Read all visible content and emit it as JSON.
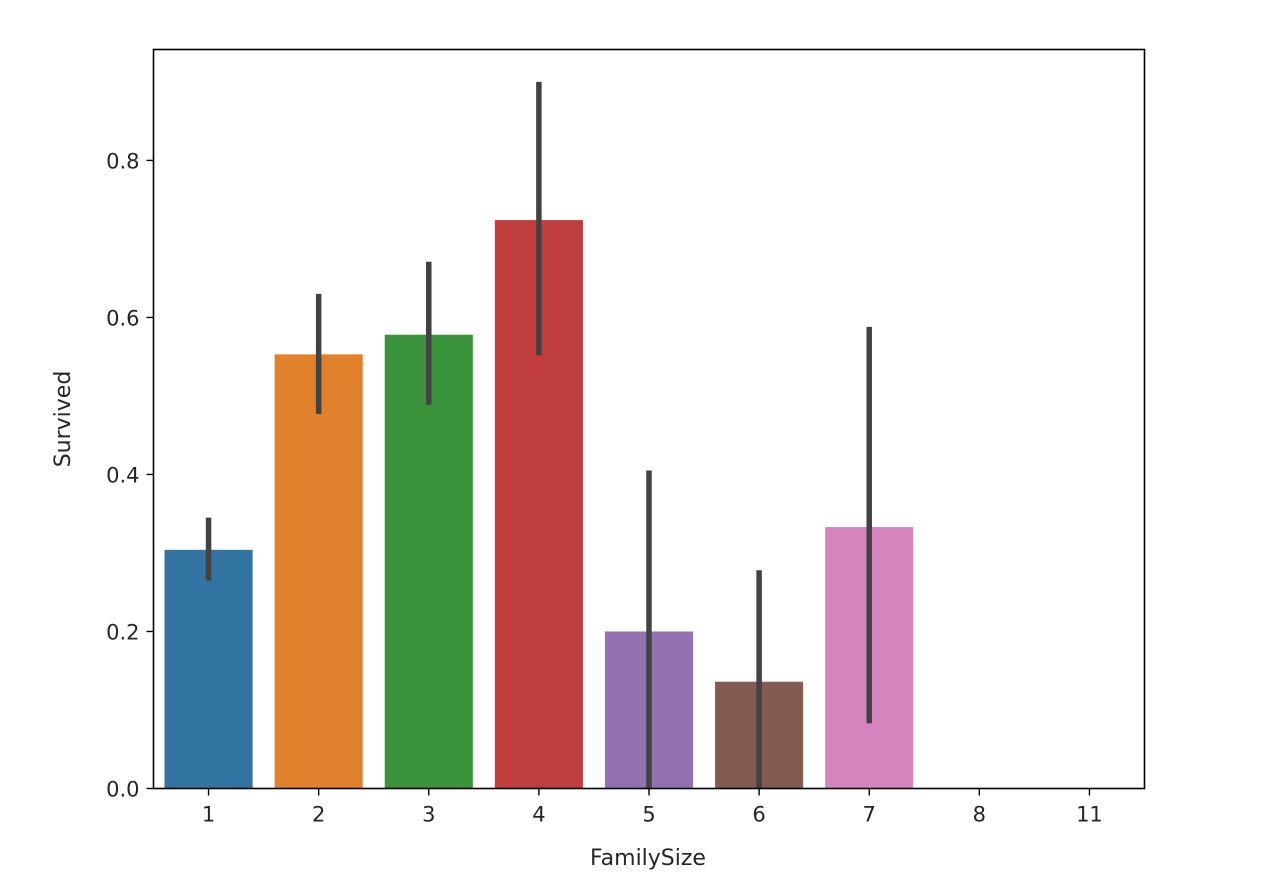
{
  "chart_data": {
    "type": "bar",
    "title": "",
    "xlabel": "FamilySize",
    "ylabel": "Survived",
    "categories": [
      "1",
      "2",
      "3",
      "4",
      "5",
      "6",
      "7",
      "8",
      "11"
    ],
    "values": [
      0.304,
      0.553,
      0.578,
      0.724,
      0.2,
      0.136,
      0.333,
      0.0,
      0.0
    ],
    "ci_low": [
      0.265,
      0.477,
      0.489,
      0.552,
      0.0,
      0.0,
      0.083,
      null,
      null
    ],
    "ci_high": [
      0.345,
      0.63,
      0.671,
      0.9,
      0.405,
      0.278,
      0.588,
      null,
      null
    ],
    "colors": [
      "#3274a1",
      "#e1812c",
      "#3a923a",
      "#c03d3e",
      "#9372b2",
      "#845b53",
      "#d684bd",
      "#7f7f7f",
      "#a9aa35"
    ],
    "ylim": [
      0,
      0.9413
    ],
    "yticks": [
      0.0,
      0.2,
      0.4,
      0.6,
      0.8
    ],
    "ytick_labels": [
      "0.0",
      "0.2",
      "0.4",
      "0.6",
      "0.8"
    ],
    "grid": false,
    "legend": "none"
  }
}
